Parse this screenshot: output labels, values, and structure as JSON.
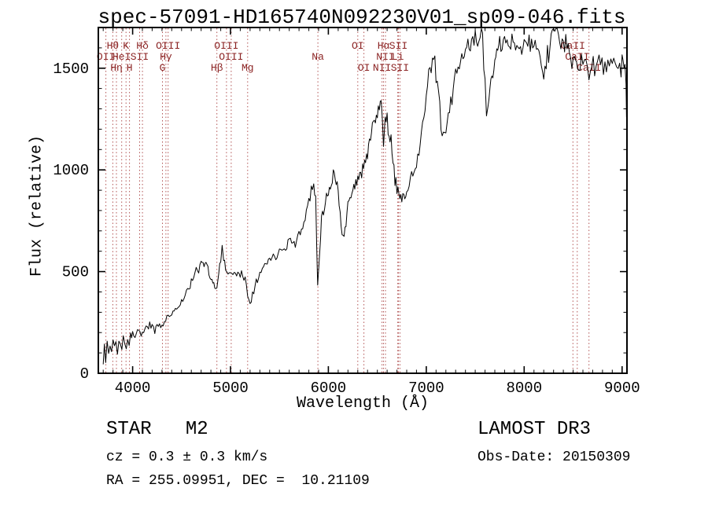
{
  "title": "spec-57091-HD165740N092230V01_sp09-046.fits",
  "chart_data": {
    "type": "line",
    "title": "spec-57091-HD165740N092230V01_sp09-046.fits",
    "xlabel": "Wavelength (Å)",
    "ylabel": "Flux (relative)",
    "xlim": [
      3650,
      9050
    ],
    "ylim": [
      0,
      1700
    ],
    "x_ticks": [
      4000,
      5000,
      6000,
      7000,
      8000,
      9000
    ],
    "y_ticks": [
      0,
      500,
      1000,
      1500
    ],
    "x_minor_step": 100,
    "y_minor_step": 100,
    "grid": false,
    "legend": "none",
    "line_color": "#000000",
    "marker_line_color": "#b25555",
    "marker_label_color": "#8b2323",
    "spectral_lines": [
      {
        "label": "OII",
        "wavelength": 3727,
        "row": 2
      },
      {
        "label": "Hθ",
        "wavelength": 3798,
        "row": 1
      },
      {
        "label": "Hη",
        "wavelength": 3835,
        "row": 3
      },
      {
        "label": "HeI",
        "wavelength": 3889,
        "row": 2
      },
      {
        "label": "K",
        "wavelength": 3933,
        "row": 1
      },
      {
        "label": "H",
        "wavelength": 3968,
        "row": 3
      },
      {
        "label": "SII",
        "wavelength": 4072,
        "row": 2
      },
      {
        "label": "Hδ",
        "wavelength": 4101,
        "row": 1
      },
      {
        "label": "G",
        "wavelength": 4305,
        "row": 3
      },
      {
        "label": "Hγ",
        "wavelength": 4340,
        "row": 2
      },
      {
        "label": "OIII",
        "wavelength": 4363,
        "row": 1
      },
      {
        "label": "Hβ",
        "wavelength": 4861,
        "row": 3
      },
      {
        "label": "OIII",
        "wavelength": 4959,
        "row": 1
      },
      {
        "label": "OIII",
        "wavelength": 5007,
        "row": 2
      },
      {
        "label": "Mg",
        "wavelength": 5175,
        "row": 3
      },
      {
        "label": "Na",
        "wavelength": 5893,
        "row": 2
      },
      {
        "label": "OI",
        "wavelength": 6300,
        "row": 1
      },
      {
        "label": "OI",
        "wavelength": 6363,
        "row": 3
      },
      {
        "label": "NII",
        "wavelength": 6548,
        "row": 3
      },
      {
        "label": "Hα",
        "wavelength": 6563,
        "row": 1
      },
      {
        "label": "NII",
        "wavelength": 6583,
        "row": 2
      },
      {
        "label": "Li",
        "wavelength": 6708,
        "row": 2
      },
      {
        "label": "SII",
        "wavelength": 6716,
        "row": 1
      },
      {
        "label": "SII",
        "wavelength": 6731,
        "row": 3
      },
      {
        "label": "CaII",
        "wavelength": 8498,
        "row": 1
      },
      {
        "label": "CaII",
        "wavelength": 8542,
        "row": 2
      },
      {
        "label": "CaII",
        "wavelength": 8662,
        "row": 3
      }
    ],
    "series": [
      {
        "name": "flux",
        "x": [
          3700,
          3712,
          3725,
          3740,
          3755,
          3770,
          3785,
          3800,
          3815,
          3830,
          3845,
          3860,
          3875,
          3890,
          3905,
          3920,
          3935,
          3950,
          3965,
          3980,
          4000,
          4025,
          4050,
          4075,
          4100,
          4125,
          4150,
          4175,
          4200,
          4227,
          4250,
          4275,
          4300,
          4325,
          4350,
          4375,
          4400,
          4425,
          4450,
          4475,
          4500,
          4525,
          4550,
          4575,
          4600,
          4625,
          4650,
          4675,
          4700,
          4720,
          4740,
          4760,
          4780,
          4800,
          4820,
          4840,
          4861,
          4880,
          4900,
          4915,
          4930,
          4950,
          4975,
          5000,
          5025,
          5050,
          5075,
          5100,
          5125,
          5150,
          5175,
          5200,
          5225,
          5250,
          5275,
          5300,
          5325,
          5350,
          5375,
          5400,
          5425,
          5450,
          5475,
          5500,
          5525,
          5550,
          5575,
          5600,
          5625,
          5650,
          5675,
          5700,
          5725,
          5750,
          5775,
          5800,
          5825,
          5850,
          5870,
          5890,
          5905,
          5920,
          5940,
          5960,
          5980,
          6000,
          6020,
          6040,
          6060,
          6080,
          6100,
          6120,
          6140,
          6160,
          6180,
          6200,
          6220,
          6240,
          6260,
          6280,
          6300,
          6320,
          6340,
          6360,
          6380,
          6400,
          6420,
          6440,
          6460,
          6480,
          6500,
          6520,
          6540,
          6563,
          6580,
          6600,
          6620,
          6640,
          6660,
          6680,
          6700,
          6720,
          6740,
          6760,
          6780,
          6800,
          6825,
          6850,
          6875,
          6900,
          6925,
          6950,
          6975,
          7000,
          7025,
          7050,
          7075,
          7100,
          7125,
          7150,
          7175,
          7200,
          7225,
          7250,
          7275,
          7300,
          7325,
          7350,
          7375,
          7400,
          7425,
          7450,
          7475,
          7500,
          7525,
          7550,
          7575,
          7600,
          7615,
          7630,
          7650,
          7670,
          7690,
          7710,
          7730,
          7750,
          7775,
          7800,
          7825,
          7850,
          7875,
          7900,
          7925,
          7950,
          7975,
          8000,
          8025,
          8050,
          8075,
          8100,
          8125,
          8150,
          8175,
          8200,
          8225,
          8250,
          8275,
          8300,
          8325,
          8350,
          8375,
          8400,
          8425,
          8450,
          8475,
          8500,
          8525,
          8545,
          8570,
          8600,
          8630,
          8662,
          8690,
          8720,
          8750,
          8780,
          8810,
          8840,
          8870,
          8900,
          8930,
          8960,
          8990,
          9010,
          9030,
          9040,
          9045
        ],
        "y": [
          40,
          130,
          60,
          150,
          90,
          160,
          110,
          170,
          120,
          150,
          105,
          160,
          140,
          115,
          170,
          160,
          125,
          170,
          145,
          185,
          195,
          185,
          210,
          195,
          200,
          225,
          215,
          235,
          230,
          205,
          245,
          235,
          225,
          255,
          270,
          285,
          300,
          310,
          320,
          335,
          350,
          375,
          400,
          420,
          445,
          470,
          500,
          520,
          545,
          560,
          530,
          540,
          500,
          470,
          440,
          430,
          410,
          480,
          560,
          630,
          560,
          520,
          495,
          480,
          490,
          495,
          500,
          495,
          480,
          460,
          400,
          340,
          400,
          440,
          465,
          485,
          510,
          535,
          550,
          560,
          570,
          580,
          590,
          600,
          615,
          625,
          640,
          655,
          645,
          640,
          660,
          680,
          705,
          730,
          790,
          855,
          900,
          930,
          885,
          430,
          560,
          700,
          780,
          830,
          865,
          890,
          915,
          950,
          1000,
          955,
          905,
          790,
          675,
          665,
          745,
          825,
          870,
          900,
          925,
          940,
          955,
          975,
          990,
          1005,
          1045,
          1095,
          1135,
          1175,
          1215,
          1245,
          1275,
          1305,
          1330,
          1150,
          1255,
          1235,
          1185,
          1115,
          1035,
          960,
          905,
          885,
          875,
          882,
          892,
          902,
          922,
          952,
          992,
          1042,
          1102,
          1172,
          1262,
          1362,
          1452,
          1508,
          1522,
          1500,
          1385,
          1215,
          1135,
          1165,
          1262,
          1332,
          1392,
          1442,
          1492,
          1532,
          1562,
          1582,
          1602,
          1617,
          1632,
          1645,
          1656,
          1660,
          1640,
          1420,
          1280,
          1322,
          1392,
          1482,
          1542,
          1572,
          1592,
          1602,
          1616,
          1622,
          1606,
          1596,
          1606,
          1616,
          1626,
          1632,
          1616,
          1602,
          1612,
          1626,
          1636,
          1642,
          1602,
          1562,
          1512,
          1465,
          1532,
          1602,
          1652,
          1682,
          1672,
          1656,
          1646,
          1636,
          1616,
          1596,
          1566,
          1532,
          1512,
          1492,
          1520,
          1532,
          1506,
          1478,
          1514,
          1536,
          1540,
          1522,
          1506,
          1516,
          1526,
          1532,
          1522,
          1514,
          1520,
          1526,
          1520,
          1420,
          1260
        ]
      }
    ]
  },
  "footer": {
    "class_line_left": "STAR   M2",
    "class_line_right": "LAMOST DR3",
    "cz_line": "cz = 0.3 ± 0.3 km/s",
    "obs_date_line": "Obs-Date: 20150309",
    "radec_line": "RA = 255.09951, DEC =  10.21109"
  }
}
